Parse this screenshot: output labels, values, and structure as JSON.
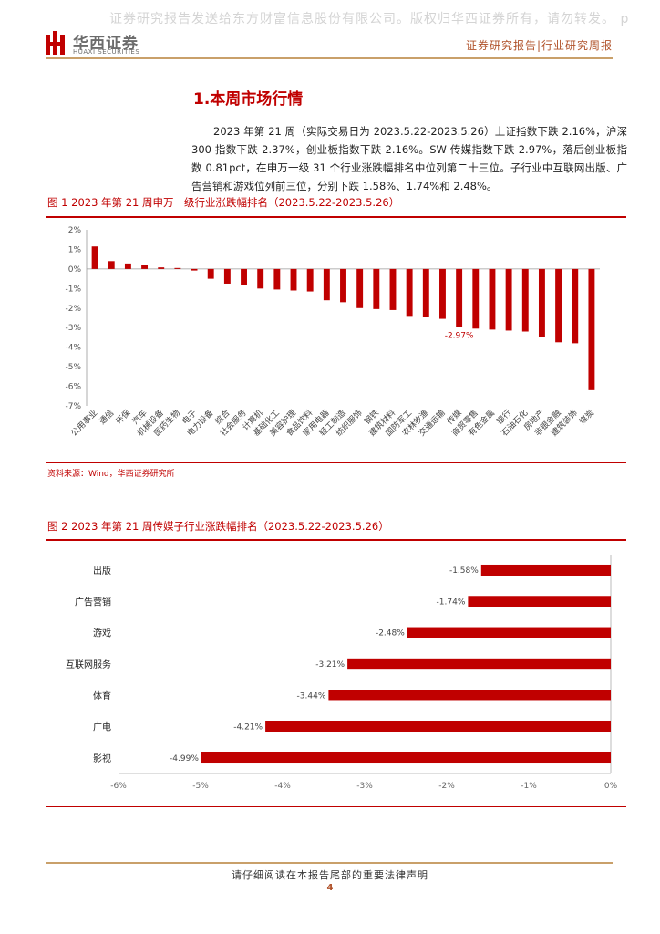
{
  "header": {
    "watermark": "证券研究报告发送给东方财富信息股份有限公司。版权归华西证券所有，请勿转发。 p",
    "brand_cn": "华西证券",
    "brand_en": "HUAXI SECURITIES",
    "report_type": "证券研究报告|行业研究周报"
  },
  "section": {
    "title": "1.本周市场行情",
    "paragraph": "2023 年第 21 周（实际交易日为 2023.5.22-2023.5.26）上证指数下跌 2.16%，沪深 300 指数下跌 2.37%，创业板指数下跌 2.16%。SW 传媒指数下跌 2.97%，落后创业板指数 0.81pct，在申万一级 31 个行业涨跌幅排名中位列第二十三位。子行业中互联网出版、广告营销和游戏位列前三位，分别下跌 1.58%、1.74%和 2.48%。"
  },
  "figure1": {
    "title": "图 1 2023 年第 21 周申万一级行业涨跌幅排名（2023.5.22-2023.5.26）",
    "source": "资料来源：Wind，华西证券研究所"
  },
  "figure2": {
    "title": "图 2 2023 年第 21 周传媒子行业涨跌幅排名（2023.5.22-2023.5.26）"
  },
  "footer": {
    "notice": "请仔细阅读在本报告尾部的重要法律声明",
    "page": "4"
  },
  "colors": {
    "accent_red": "#c00000",
    "gold": "#c9a06a"
  },
  "chart_data": [
    {
      "type": "bar",
      "orientation": "vertical",
      "categories": [
        "公用事业",
        "通信",
        "环保",
        "汽车",
        "机械设备",
        "医药生物",
        "电子",
        "电力设备",
        "综合",
        "社会服务",
        "计算机",
        "基础化工",
        "美容护理",
        "食品饮料",
        "家用电器",
        "轻工制造",
        "纺织服饰",
        "钢铁",
        "建筑材料",
        "国防军工",
        "农林牧渔",
        "交通运输",
        "传媒",
        "商贸零售",
        "有色金属",
        "银行",
        "石油石化",
        "房地产",
        "非银金融",
        "建筑装饰",
        "煤炭"
      ],
      "values": [
        1.15,
        0.4,
        0.28,
        0.2,
        0.08,
        0.05,
        -0.08,
        -0.5,
        -0.75,
        -0.8,
        -1.0,
        -1.05,
        -1.1,
        -1.15,
        -1.6,
        -1.7,
        -2.0,
        -2.05,
        -2.1,
        -2.4,
        -2.45,
        -2.55,
        -2.97,
        -3.05,
        -3.1,
        -3.15,
        -3.2,
        -3.5,
        -3.75,
        -3.8,
        -6.2
      ],
      "ylim": [
        -7,
        2
      ],
      "yticks": [
        "2%",
        "1%",
        "0%",
        "-1%",
        "-2%",
        "-3%",
        "-4%",
        "-5%",
        "-6%",
        "-7%"
      ],
      "annotations": [
        {
          "category": "传媒",
          "label": "-2.97%"
        }
      ],
      "grid": false,
      "color": "#c00000"
    },
    {
      "type": "bar",
      "orientation": "horizontal",
      "categories": [
        "出版",
        "广告营销",
        "游戏",
        "互联网服务",
        "体育",
        "广电",
        "影视"
      ],
      "values": [
        -1.58,
        -1.74,
        -2.48,
        -3.21,
        -3.44,
        -4.21,
        -4.99
      ],
      "data_labels": [
        "-1.58%",
        "-1.74%",
        "-2.48%",
        "-3.21%",
        "-3.44%",
        "-4.21%",
        "-4.99%"
      ],
      "xlim": [
        -6,
        0
      ],
      "xticks": [
        "-6%",
        "-5%",
        "-4%",
        "-3%",
        "-2%",
        "-1%",
        "0%"
      ],
      "grid": false,
      "color": "#c00000"
    }
  ]
}
